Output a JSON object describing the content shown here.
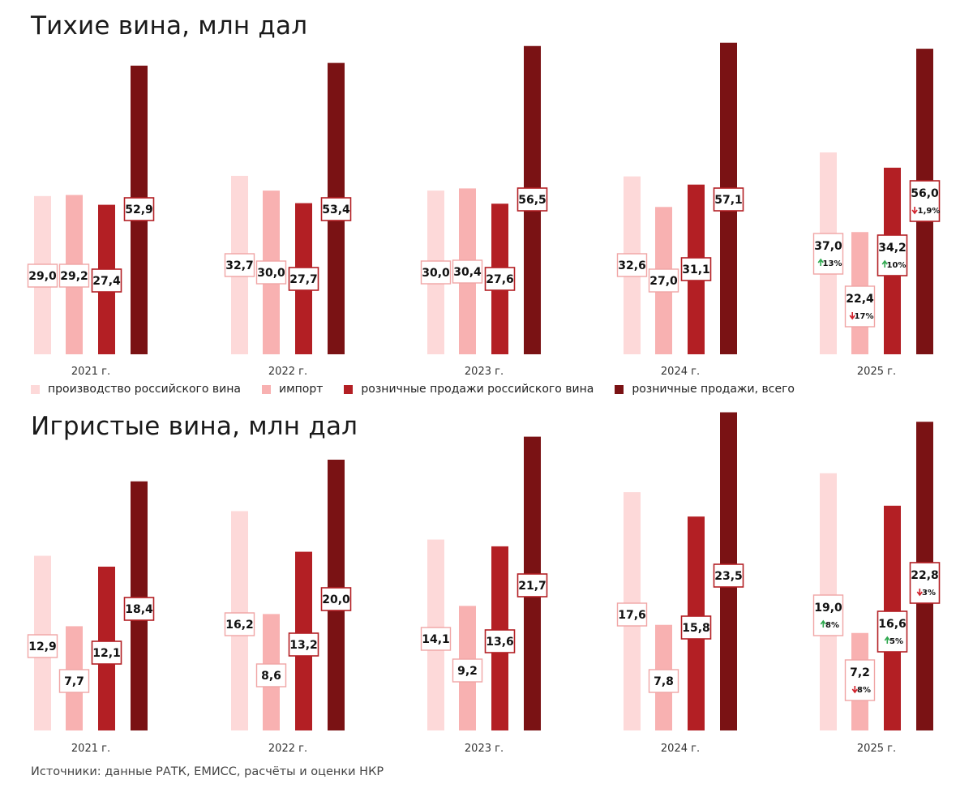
{
  "colors": {
    "production": "#fdd9d9",
    "import": "#f8b1b1",
    "retail_russian": "#b31f24",
    "retail_total": "#7a1214",
    "box_border_production": "#f0a5a5",
    "box_border_import": "#f0a5a5",
    "box_border_retail_russian": "#b31f24",
    "box_border_retail_total": "#b31f24",
    "up": "#2fa84f",
    "down": "#d0202a"
  },
  "legend": {
    "items": [
      {
        "label": "производство российского вина",
        "color": "#fdd9d9"
      },
      {
        "label": "импорт",
        "color": "#f8b1b1"
      },
      {
        "label": "розничные продажи российского вина",
        "color": "#b31f24"
      },
      {
        "label": "розничные продажи, всего",
        "color": "#7a1214"
      }
    ]
  },
  "source": "Источники: данные РАТК, ЕМИСС, расчёты и оценки НКР",
  "chart_data": [
    {
      "id": "still",
      "type": "bar",
      "title": "Тихие вина, млн дал",
      "categories": [
        "2021 г.",
        "2022 г.",
        "2023 г.",
        "2024 г.",
        "2025 г."
      ],
      "series": [
        {
          "name": "производство российского вина",
          "key": "production",
          "values": [
            29.0,
            32.7,
            30.0,
            32.6,
            37.0
          ],
          "labels": [
            "29,0",
            "32,7",
            "30,0",
            "32,6",
            "37,0"
          ]
        },
        {
          "name": "импорт",
          "key": "import",
          "values": [
            29.2,
            30.0,
            30.4,
            27.0,
            22.4
          ],
          "labels": [
            "29,2",
            "30,0",
            "30,4",
            "27,0",
            "22,4"
          ]
        },
        {
          "name": "розничные продажи российского вина",
          "key": "retail_russian",
          "values": [
            27.4,
            27.7,
            27.6,
            31.1,
            34.2
          ],
          "labels": [
            "27,4",
            "27,7",
            "27,6",
            "31,1",
            "34,2"
          ]
        },
        {
          "name": "розничные продажи, всего",
          "key": "retail_total",
          "values": [
            52.9,
            53.4,
            56.5,
            57.1,
            56.0
          ],
          "labels": [
            "52,9",
            "53,4",
            "56,5",
            "57,1",
            "56,0"
          ]
        }
      ],
      "changes_2025": {
        "production": {
          "dir": "up",
          "text": "13%"
        },
        "import": {
          "dir": "down",
          "text": "17%"
        },
        "retail_russian": {
          "dir": "up",
          "text": "10%"
        },
        "retail_total": {
          "dir": "down",
          "text": "1,9%"
        }
      },
      "ylim": [
        0,
        60
      ]
    },
    {
      "id": "sparkling",
      "type": "bar",
      "title": "Игристые вина, млн дал",
      "categories": [
        "2021 г.",
        "2022 г.",
        "2023 г.",
        "2024 г.",
        "2025 г."
      ],
      "series": [
        {
          "name": "производство российского вина",
          "key": "production",
          "values": [
            12.9,
            16.2,
            14.1,
            17.6,
            19.0
          ],
          "labels": [
            "12,9",
            "16,2",
            "14,1",
            "17,6",
            "19,0"
          ]
        },
        {
          "name": "импорт",
          "key": "import",
          "values": [
            7.7,
            8.6,
            9.2,
            7.8,
            7.2
          ],
          "labels": [
            "7,7",
            "8,6",
            "9,2",
            "7,8",
            "7,2"
          ]
        },
        {
          "name": "розничные продажи российского вина",
          "key": "retail_russian",
          "values": [
            12.1,
            13.2,
            13.6,
            15.8,
            16.6
          ],
          "labels": [
            "12,1",
            "13,2",
            "13,6",
            "15,8",
            "16,6"
          ]
        },
        {
          "name": "розничные продажи, всего",
          "key": "retail_total",
          "values": [
            18.4,
            20.0,
            21.7,
            23.5,
            22.8
          ],
          "labels": [
            "18,4",
            "20,0",
            "21,7",
            "23,5",
            "22,8"
          ]
        }
      ],
      "changes_2025": {
        "production": {
          "dir": "up",
          "text": "8%"
        },
        "import": {
          "dir": "down",
          "text": "8%"
        },
        "retail_russian": {
          "dir": "up",
          "text": "5%"
        },
        "retail_total": {
          "dir": "down",
          "text": "3%"
        }
      },
      "ylim": [
        0,
        24
      ]
    }
  ]
}
